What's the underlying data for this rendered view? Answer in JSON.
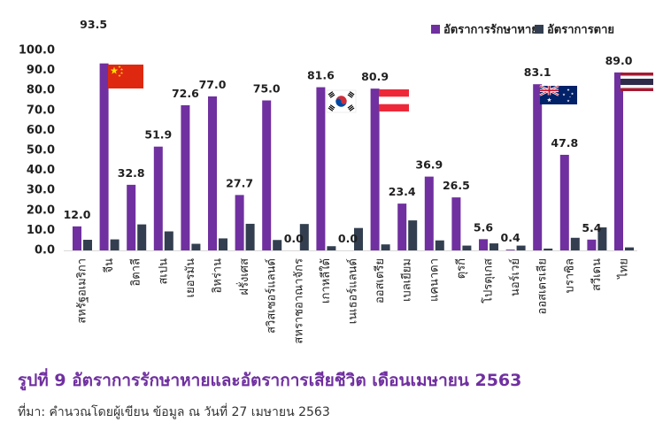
{
  "colors": {
    "recovery": "#7030A0",
    "death": "#333F50",
    "title": "#7030A0",
    "baseline": "#D9D9D9"
  },
  "chart_data": {
    "type": "bar",
    "title": "รูปที่ 9 อัตราการรักษาหายและอัตราการเสียชีวิต เดือนเมษายน 2563",
    "source": "ที่มา: คำนวณโดยผู้เขียน ข้อมูล ณ วันที่ 27 เมษายน 2563",
    "xlabel": "",
    "ylabel": "",
    "ylim": [
      0,
      100
    ],
    "yticks": [
      0,
      10,
      20,
      30,
      40,
      50,
      60,
      70,
      80,
      90,
      100
    ],
    "ytick_decimals": 1,
    "grid": false,
    "legend": "top-right",
    "categories": [
      "สหรัฐอเมริกา",
      "จีน",
      "อิตาลี",
      "สเปน",
      "เยอรมัน",
      "อิหร่าน",
      "ฝรั่งเศส",
      "สวิสเซอร์แลนด์",
      "สหราชอาณาจักร",
      "เกาหลีใต้",
      "เนเธอร์แลนด์",
      "ออสเตรีย",
      "เบลเยียม",
      "แคนาดา",
      "ตุรกี",
      "โปรตุเกส",
      "นอร์เวย์",
      "ออสเตรเลีย",
      "บราซิล",
      "สวีเดน",
      "ไทย"
    ],
    "series": [
      {
        "name": "อัตราการรักษาหาย",
        "color_key": "recovery",
        "data_labels": true,
        "values": [
          12.0,
          93.5,
          32.8,
          51.9,
          72.6,
          77.0,
          27.7,
          75.0,
          0.0,
          81.6,
          0.0,
          80.9,
          23.4,
          36.9,
          26.5,
          5.6,
          0.4,
          83.1,
          47.8,
          5.4,
          89.0
        ]
      },
      {
        "name": "อัตราการตาย",
        "color_key": "death",
        "data_labels": false,
        "values": [
          5.3,
          5.5,
          13.0,
          9.5,
          3.3,
          6.0,
          13.3,
          5.2,
          13.2,
          2.1,
          11.2,
          3.0,
          15.0,
          5.0,
          2.4,
          3.5,
          2.4,
          0.9,
          6.3,
          11.5,
          1.5
        ]
      }
    ],
    "annotations": [
      {
        "category_index": 1,
        "icon": "china-flag-icon"
      },
      {
        "category_index": 9,
        "icon": "south-korea-flag-icon"
      },
      {
        "category_index": 11,
        "icon": "austria-flag-icon"
      },
      {
        "category_index": 17,
        "icon": "australia-flag-icon"
      },
      {
        "category_index": 20,
        "icon": "thailand-flag-icon"
      }
    ]
  }
}
